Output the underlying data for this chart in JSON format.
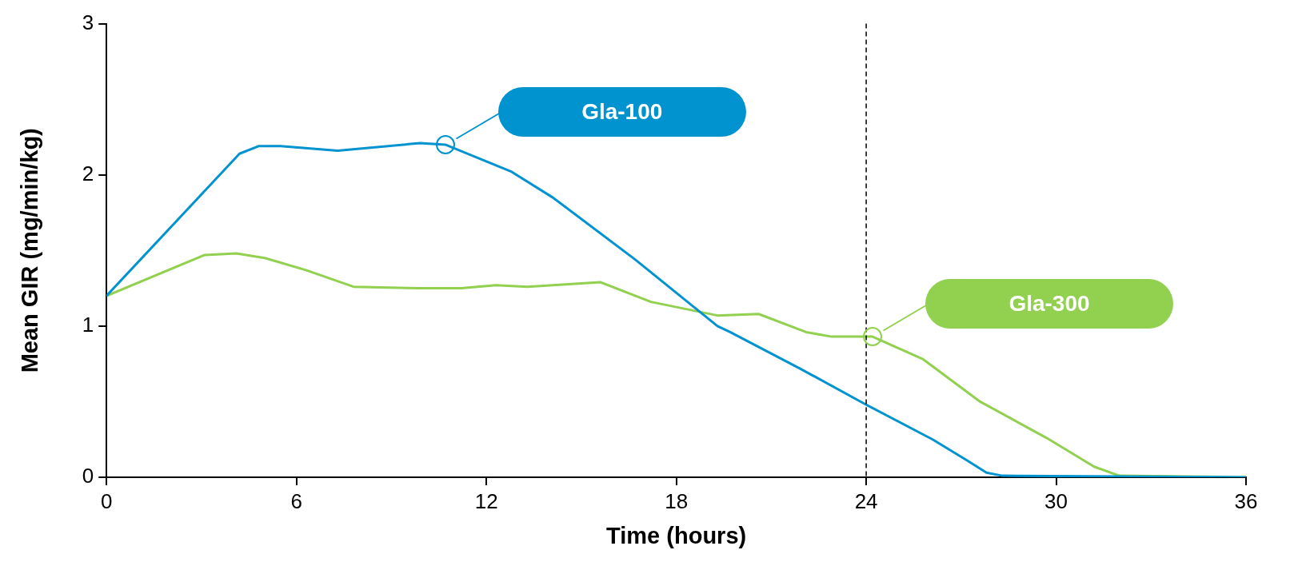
{
  "chart_data": {
    "type": "line",
    "xlabel": "Time (hours)",
    "ylabel": "Mean GIR (mg/min/kg)",
    "xlim": [
      0,
      36
    ],
    "xticks": [
      0,
      6,
      12,
      18,
      24,
      30,
      36
    ],
    "ylim": [
      0,
      3
    ],
    "yticks": [
      0,
      1,
      2,
      3
    ],
    "grid": false,
    "legend": false,
    "marker": "none",
    "line_style": "solid",
    "series": [
      {
        "name": "Gla-100",
        "color": "#0093d0",
        "x": [
          0,
          4.2,
          4.8,
          5.5,
          7.3,
          9.9,
          10.7,
          12.8,
          14.1,
          16.7,
          19.3,
          19.7,
          21.9,
          24,
          26.1,
          27.2,
          27.8,
          28.3,
          36
        ],
        "values": [
          1.2,
          2.14,
          2.19,
          2.19,
          2.16,
          2.21,
          2.2,
          2.02,
          1.85,
          1.44,
          1.0,
          0.96,
          0.72,
          0.48,
          0.25,
          0.11,
          0.03,
          0.01,
          0
        ]
      },
      {
        "name": "Gla-300",
        "color": "#92d050",
        "x": [
          0,
          3.1,
          4.1,
          5,
          6.3,
          7.8,
          9.9,
          11.2,
          12.3,
          13.3,
          15.6,
          17.2,
          19.3,
          20.6,
          22.1,
          22.9,
          23.4,
          24.2,
          25.8,
          27.6,
          29.7,
          31.2,
          32,
          36
        ],
        "values": [
          1.2,
          1.47,
          1.48,
          1.45,
          1.37,
          1.26,
          1.25,
          1.25,
          1.27,
          1.26,
          1.29,
          1.16,
          1.07,
          1.08,
          0.96,
          0.93,
          0.93,
          0.93,
          0.78,
          0.5,
          0.26,
          0.07,
          0.01,
          0
        ]
      }
    ],
    "ref_lines": [
      {
        "axis": "x",
        "value": 24,
        "color": "#000000",
        "line_style": "dashed"
      }
    ]
  }
}
